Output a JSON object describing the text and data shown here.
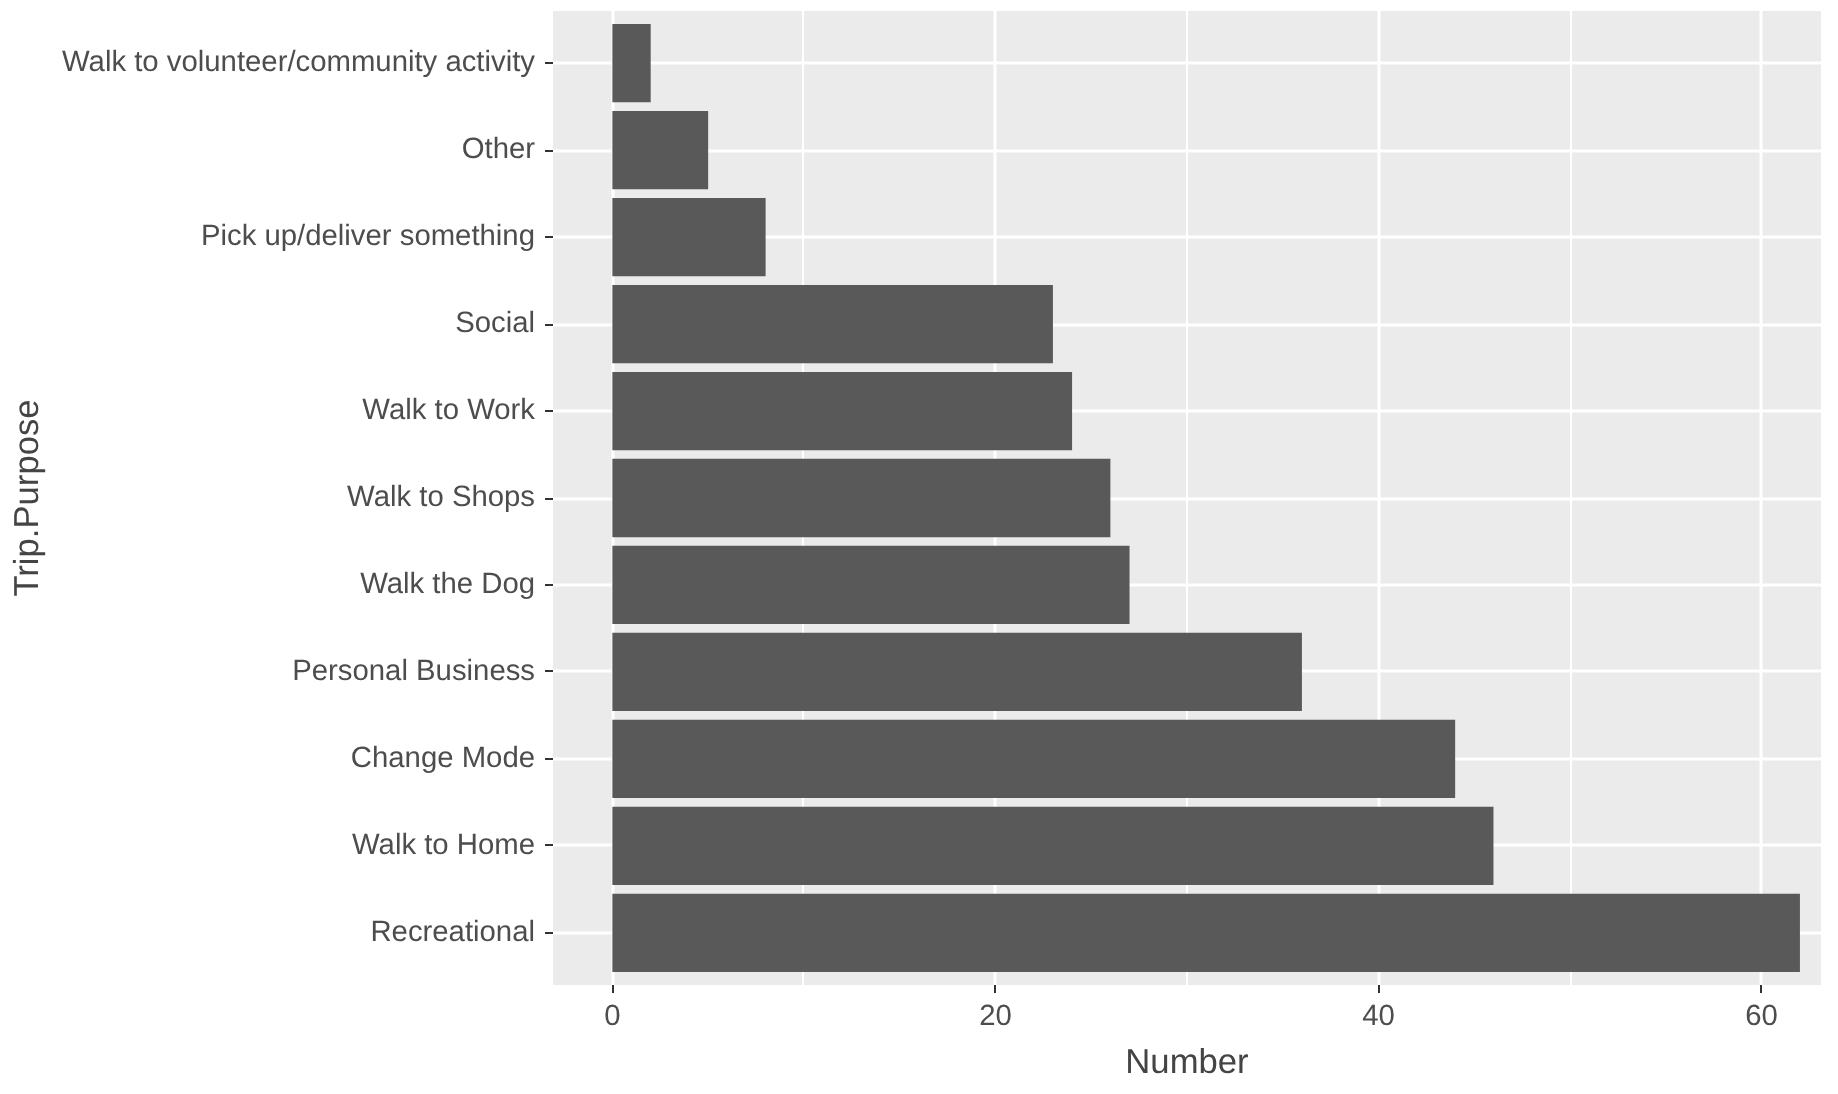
{
  "chart_data": {
    "type": "bar",
    "orientation": "horizontal",
    "xlabel": "Number",
    "ylabel": "Trip.Purpose",
    "categories": [
      "Walk to volunteer/community activity",
      "Other",
      "Pick up/deliver something",
      "Social",
      "Walk to Work",
      "Walk to Shops",
      "Walk the Dog",
      "Personal Business",
      "Change Mode",
      "Walk to Home",
      "Recreational"
    ],
    "values": [
      2,
      5,
      8,
      23,
      24,
      26,
      27,
      36,
      44,
      46,
      62
    ],
    "color": "#595959",
    "xlim": [
      -3.1,
      63.1
    ],
    "xticks": [
      0,
      20,
      40,
      60
    ],
    "grid": true
  }
}
